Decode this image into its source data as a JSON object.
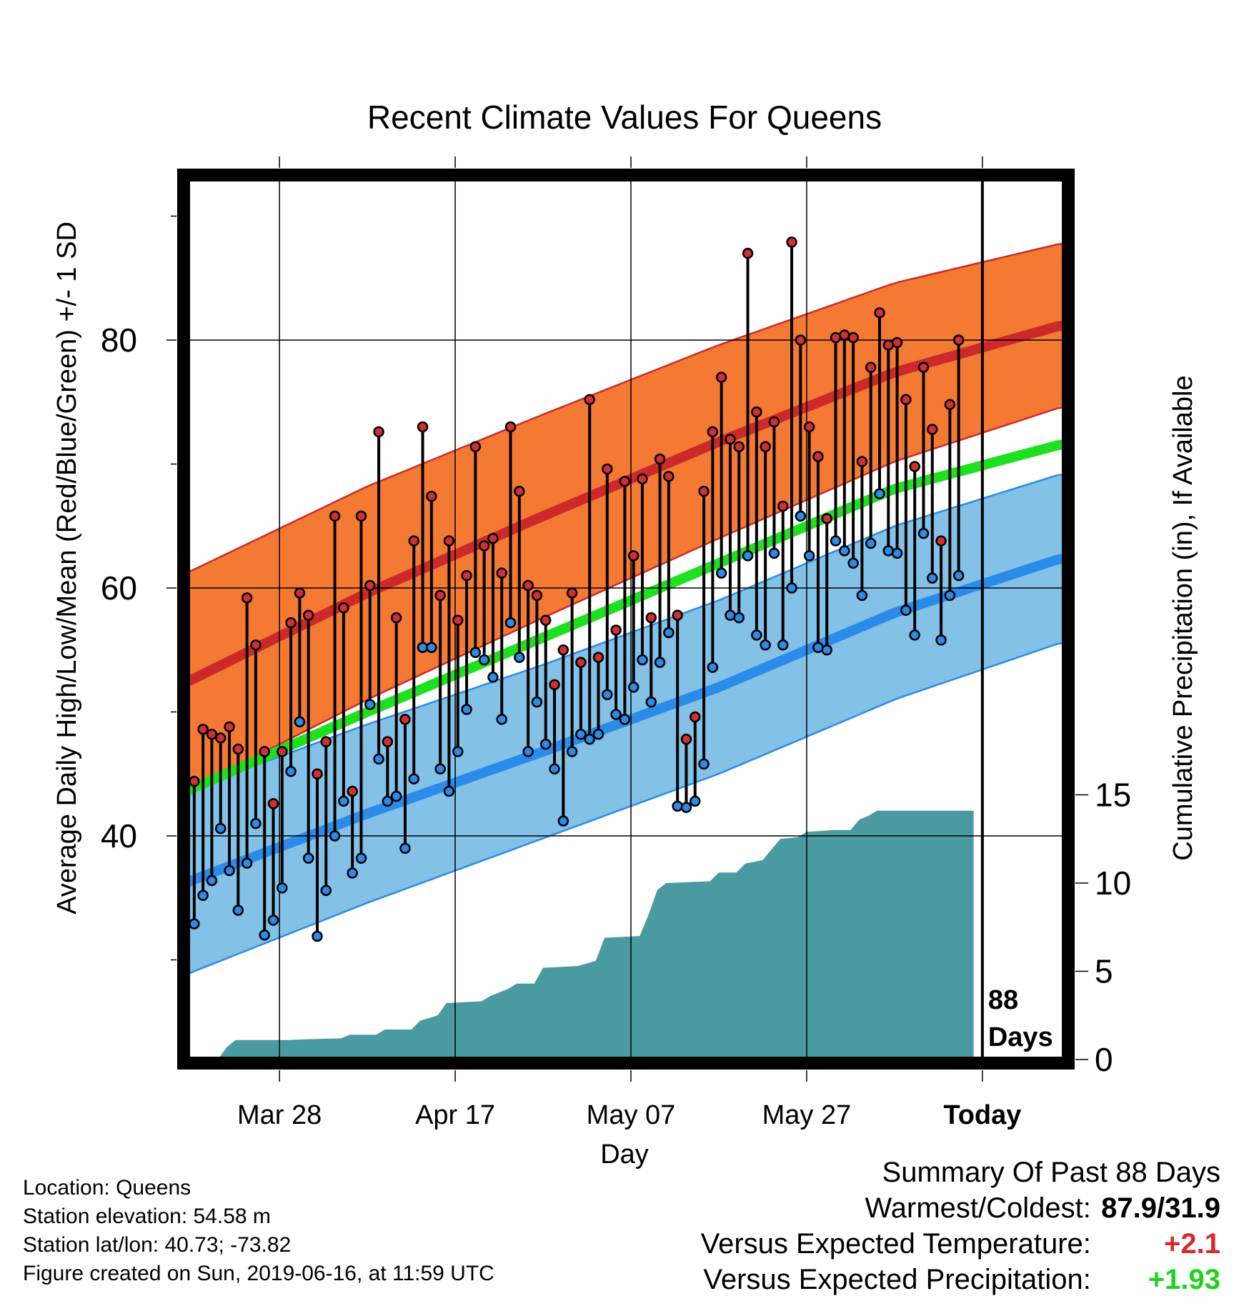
{
  "chart_data": {
    "type": "line",
    "title": "Recent Climate Values For Queens",
    "xlabel": "Day",
    "ylabel": "Average Daily High/Low/Mean (Red/Blue/Green) +/- 1 SD",
    "y2label": "Cumulative Precipitation (in), If Available",
    "ylim": [
      25,
      95
    ],
    "y2lim": [
      0,
      25
    ],
    "y_ticks": [
      "40",
      "60",
      "80"
    ],
    "y2_ticks": [
      "0",
      "5",
      "10",
      "15"
    ],
    "x_tick_labels": [
      "Mar 28",
      "Apr 17",
      "May 07",
      "May 27",
      "Today"
    ],
    "today_label": [
      "88",
      "Days"
    ],
    "days": 88,
    "grid": true,
    "normals": {
      "high_mean": [
        [
          -10,
          49.4
        ],
        [
          0,
          52.6
        ],
        [
          20,
          59.6
        ],
        [
          40,
          65.8
        ],
        [
          60,
          71.8
        ],
        [
          80,
          77.4
        ],
        [
          99,
          81.2
        ]
      ],
      "high_sd": [
        [
          -10,
          9.0
        ],
        [
          0,
          8.8
        ],
        [
          20,
          8.6
        ],
        [
          40,
          8.2
        ],
        [
          60,
          7.8
        ],
        [
          80,
          7.2
        ],
        [
          99,
          6.6
        ]
      ],
      "low_mean": [
        [
          -10,
          33.0
        ],
        [
          0,
          36.4
        ],
        [
          20,
          41.8
        ],
        [
          40,
          46.8
        ],
        [
          60,
          52.0
        ],
        [
          80,
          58.0
        ],
        [
          99,
          62.4
        ]
      ],
      "low_sd": [
        [
          -10,
          7.6
        ],
        [
          0,
          7.4
        ],
        [
          20,
          7.2
        ],
        [
          40,
          7.0
        ],
        [
          60,
          7.0
        ],
        [
          80,
          7.0
        ],
        [
          99,
          6.8
        ]
      ],
      "mean": [
        [
          -10,
          40.4
        ],
        [
          0,
          43.8
        ],
        [
          20,
          50.0
        ],
        [
          40,
          56.0
        ],
        [
          60,
          62.0
        ],
        [
          80,
          68.0
        ],
        [
          99,
          71.6
        ]
      ]
    },
    "highs": [
      44.4,
      48.6,
      48.2,
      47.9,
      48.8,
      47.0,
      59.2,
      55.4,
      46.8,
      42.6,
      46.8,
      57.2,
      59.6,
      57.8,
      45.0,
      47.6,
      65.8,
      58.4,
      43.6,
      65.8,
      60.2,
      72.6,
      47.6,
      57.6,
      49.4,
      63.8,
      73.0,
      67.4,
      59.4,
      63.8,
      57.4,
      61.0,
      71.4,
      63.4,
      64.0,
      61.2,
      73.0,
      67.8,
      60.2,
      59.4,
      57.4,
      52.2,
      55.0,
      59.6,
      54.0,
      75.2,
      54.4,
      69.6,
      56.6,
      68.6,
      62.6,
      68.8,
      57.6,
      70.4,
      69.0,
      57.8,
      47.8,
      49.6,
      67.8,
      72.6,
      77.0,
      72.0,
      71.4,
      87.0,
      74.2,
      71.4,
      73.4,
      66.6,
      87.9,
      80.0,
      73.0,
      70.6,
      65.6,
      80.2,
      80.4,
      80.2,
      70.2,
      77.8,
      82.2,
      79.6,
      79.8,
      75.2,
      69.8,
      77.8,
      72.8,
      63.8,
      74.8,
      80.0
    ],
    "lows": [
      32.9,
      35.2,
      36.4,
      40.6,
      37.2,
      34.0,
      37.8,
      41.0,
      32.0,
      33.2,
      35.8,
      45.2,
      49.2,
      38.2,
      31.9,
      35.6,
      40.0,
      42.8,
      37.0,
      38.2,
      50.6,
      46.2,
      42.8,
      43.2,
      39.0,
      44.6,
      55.2,
      55.2,
      45.4,
      43.6,
      46.8,
      50.2,
      54.8,
      54.2,
      52.8,
      49.4,
      57.2,
      54.4,
      46.8,
      50.8,
      47.4,
      45.4,
      41.2,
      46.8,
      48.2,
      47.8,
      48.2,
      51.4,
      49.8,
      49.4,
      52.0,
      54.2,
      50.8,
      54.0,
      56.4,
      42.4,
      42.3,
      42.8,
      45.8,
      53.6,
      61.2,
      57.8,
      57.6,
      62.6,
      56.2,
      55.4,
      62.8,
      55.4,
      60.0,
      65.8,
      62.6,
      55.2,
      55.0,
      63.8,
      63.0,
      62.0,
      59.4,
      63.6,
      67.6,
      63.0,
      62.8,
      58.2,
      56.2,
      64.4,
      60.8,
      55.8,
      59.4,
      61.0
    ],
    "precip": [
      [
        0,
        0
      ],
      [
        3,
        0
      ],
      [
        4,
        0.7
      ],
      [
        5,
        1.1
      ],
      [
        11,
        1.1
      ],
      [
        13,
        1.15
      ],
      [
        17,
        1.2
      ],
      [
        18,
        1.4
      ],
      [
        21,
        1.4
      ],
      [
        22,
        1.7
      ],
      [
        25,
        1.7
      ],
      [
        26,
        2.2
      ],
      [
        28,
        2.5
      ],
      [
        29,
        3.2
      ],
      [
        33,
        3.3
      ],
      [
        34,
        3.6
      ],
      [
        36,
        4.0
      ],
      [
        37,
        4.3
      ],
      [
        39,
        4.3
      ],
      [
        40,
        5.2
      ],
      [
        44,
        5.3
      ],
      [
        46,
        5.6
      ],
      [
        47,
        6.9
      ],
      [
        51,
        7.0
      ],
      [
        52,
        8.2
      ],
      [
        53,
        9.6
      ],
      [
        54,
        10.0
      ],
      [
        59,
        10.1
      ],
      [
        60,
        10.6
      ],
      [
        62,
        10.6
      ],
      [
        63,
        11.1
      ],
      [
        65,
        11.3
      ],
      [
        67,
        12.5
      ],
      [
        69,
        12.6
      ],
      [
        70,
        12.9
      ],
      [
        73,
        13.0
      ],
      [
        75,
        13.0
      ],
      [
        76,
        13.6
      ],
      [
        77,
        13.8
      ],
      [
        78,
        14.1
      ],
      [
        89,
        14.1
      ]
    ]
  },
  "info": {
    "location": "Location: Queens",
    "elevation": "Station elevation: 54.58 m",
    "latlon": "Station lat/lon: 40.73; -73.82",
    "created": "Figure created on Sun, 2019-06-16, at 11:59 UTC"
  },
  "summary": {
    "title": "Summary Of Past 88 Days",
    "warmest_coldest_label": "Warmest/Coldest:",
    "warmest_coldest_value": "87.9/31.9",
    "temp_label": "Versus Expected Temperature:",
    "temp_value": "+2.1",
    "precip_label": "Versus Expected Precipitation:",
    "precip_value": "+1.93"
  },
  "colors": {
    "high_band": "#f47a34",
    "high_line": "#cc2a2a",
    "low_band": "#83c1e6",
    "low_line": "#2b8be8",
    "mean_line": "#1fe01f",
    "precip_fill": "#4a9aa1",
    "high_dot": "#d13030",
    "low_dot": "#2b8be8"
  }
}
